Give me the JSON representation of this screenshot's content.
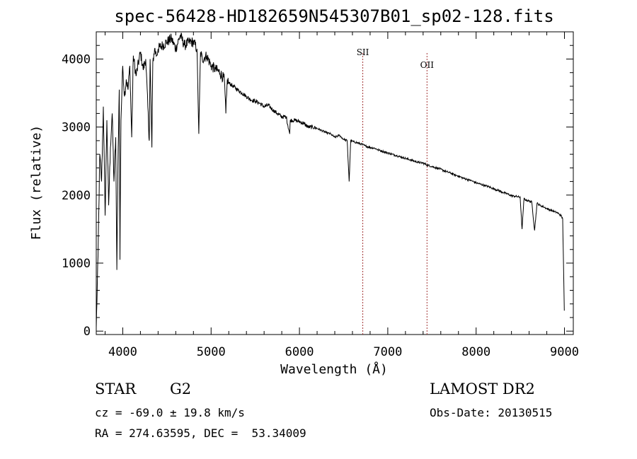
{
  "chart_data": {
    "type": "line",
    "title": "spec-56428-HD182659N545307B01_sp02-128.fits",
    "xlabel": "Wavelength (Å)",
    "ylabel": "Flux (relative)",
    "xlim": [
      3700,
      9100
    ],
    "ylim": [
      -50,
      4400
    ],
    "xticks": [
      4000,
      5000,
      6000,
      7000,
      8000,
      9000
    ],
    "yticks": [
      0,
      1000,
      2000,
      3000,
      4000
    ],
    "grid": false,
    "series": [
      {
        "name": "flux",
        "x": [
          3700,
          3720,
          3740,
          3760,
          3780,
          3800,
          3820,
          3840,
          3860,
          3880,
          3900,
          3920,
          3933,
          3945,
          3960,
          3968,
          3980,
          4000,
          4020,
          4040,
          4060,
          4080,
          4101,
          4120,
          4150,
          4200,
          4230,
          4260,
          4300,
          4310,
          4330,
          4340,
          4360,
          4383,
          4400,
          4450,
          4500,
          4550,
          4600,
          4650,
          4700,
          4750,
          4800,
          4840,
          4861,
          4880,
          4900,
          4950,
          5000,
          5050,
          5100,
          5150,
          5167,
          5184,
          5200,
          5250,
          5300,
          5350,
          5400,
          5450,
          5500,
          5550,
          5600,
          5650,
          5700,
          5750,
          5800,
          5850,
          5890,
          5896,
          5950,
          6000,
          6050,
          6100,
          6150,
          6200,
          6250,
          6300,
          6350,
          6400,
          6450,
          6500,
          6540,
          6563,
          6580,
          6600,
          6650,
          6700,
          6750,
          6800,
          6850,
          6900,
          6950,
          7000,
          7050,
          7100,
          7150,
          7200,
          7250,
          7300,
          7350,
          7400,
          7450,
          7500,
          7550,
          7600,
          7650,
          7700,
          7750,
          7800,
          7850,
          7900,
          7950,
          8000,
          8050,
          8100,
          8150,
          8200,
          8250,
          8300,
          8350,
          8400,
          8450,
          8498,
          8520,
          8542,
          8560,
          8600,
          8630,
          8662,
          8690,
          8720,
          8760,
          8800,
          8840,
          8880,
          8920,
          8960,
          8980,
          8990,
          8998
        ],
        "values": [
          50,
          1100,
          2600,
          2200,
          3300,
          1700,
          3100,
          1850,
          2700,
          3200,
          2200,
          2850,
          900,
          2400,
          3550,
          1050,
          3100,
          3900,
          3450,
          3700,
          3550,
          3900,
          2850,
          4050,
          3750,
          4100,
          3850,
          4000,
          2800,
          4000,
          2700,
          3950,
          4150,
          4050,
          4150,
          4200,
          4250,
          4300,
          4150,
          4350,
          4200,
          4250,
          4250,
          4150,
          2900,
          4100,
          4000,
          4050,
          3900,
          3850,
          3800,
          3700,
          3200,
          3700,
          3650,
          3600,
          3550,
          3500,
          3450,
          3400,
          3380,
          3350,
          3300,
          3320,
          3250,
          3200,
          3150,
          3150,
          2900,
          3100,
          3100,
          3080,
          3050,
          3000,
          3000,
          2980,
          2950,
          2920,
          2900,
          2850,
          2880,
          2820,
          2800,
          2200,
          2800,
          2790,
          2770,
          2750,
          2720,
          2700,
          2690,
          2660,
          2640,
          2620,
          2600,
          2580,
          2560,
          2540,
          2520,
          2500,
          2480,
          2470,
          2440,
          2420,
          2400,
          2380,
          2350,
          2330,
          2300,
          2280,
          2250,
          2230,
          2210,
          2180,
          2160,
          2140,
          2120,
          2090,
          2070,
          2040,
          2020,
          1990,
          1980,
          1970,
          1500,
          1950,
          1930,
          1910,
          1900,
          1480,
          1880,
          1850,
          1830,
          1800,
          1780,
          1760,
          1740,
          1700,
          1650,
          900,
          300
        ]
      }
    ],
    "annotations": [
      {
        "label": "SII",
        "x": 6717,
        "line_color": "#a33434"
      },
      {
        "label": "OII",
        "x": 7444,
        "line_color": "#a33434"
      }
    ]
  },
  "info": {
    "object_class": "STAR",
    "subclass": "G2",
    "survey": "LAMOST DR2",
    "cz": "cz = -69.0 ± 19.8 km/s",
    "obs_date": "Obs-Date: 20130515",
    "coords": "RA = 274.63595, DEC =  53.34009"
  },
  "colors": {
    "axes": "#000000",
    "line": "#000000",
    "marker_line": "#a33434"
  }
}
